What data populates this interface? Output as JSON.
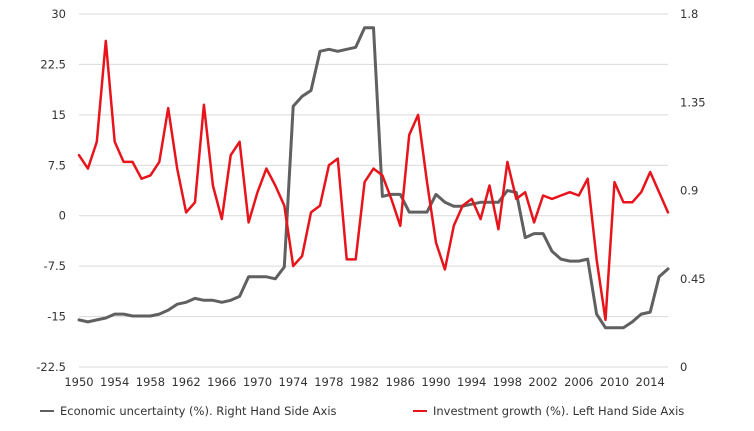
{
  "chart_data": {
    "type": "line",
    "title": "",
    "xlabel": "",
    "ylabel_left": "",
    "ylabel_right": "",
    "x": [
      1950,
      1951,
      1952,
      1953,
      1954,
      1955,
      1956,
      1957,
      1958,
      1959,
      1960,
      1961,
      1962,
      1963,
      1964,
      1965,
      1966,
      1967,
      1968,
      1969,
      1970,
      1971,
      1972,
      1973,
      1974,
      1975,
      1976,
      1977,
      1978,
      1979,
      1980,
      1981,
      1982,
      1983,
      1984,
      1985,
      1986,
      1987,
      1988,
      1989,
      1990,
      1991,
      1992,
      1993,
      1994,
      1995,
      1996,
      1997,
      1998,
      1999,
      2000,
      2001,
      2002,
      2003,
      2004,
      2005,
      2006,
      2007,
      2008,
      2009,
      2010,
      2011,
      2012,
      2013,
      2014,
      2015,
      2016
    ],
    "x_ticks": [
      "1950",
      "1954",
      "1958",
      "1962",
      "1966",
      "1970",
      "1974",
      "1978",
      "1982",
      "1986",
      "1990",
      "1994",
      "1998",
      "2002",
      "2006",
      "2010",
      "2014"
    ],
    "y_left_ticks": [
      "30",
      "22.5",
      "15",
      "7.5",
      "0",
      "-7.5",
      "-15",
      "-22.5"
    ],
    "y_right_ticks": [
      "1.8",
      "1.35",
      "0.9",
      "0.45",
      "0"
    ],
    "ylim_left": [
      -22.5,
      30
    ],
    "ylim_right": [
      0,
      1.8
    ],
    "grid": "horizontal",
    "legend_position": "bottom",
    "series": [
      {
        "name": "Economic uncertainty (%). Right Hand Side Axis",
        "axis": "right",
        "color": "#606060",
        "values": [
          0.24,
          0.23,
          0.24,
          0.25,
          0.27,
          0.27,
          0.26,
          0.26,
          0.26,
          0.27,
          0.29,
          0.32,
          0.33,
          0.35,
          0.34,
          0.34,
          0.33,
          0.34,
          0.36,
          0.46,
          0.46,
          0.46,
          0.45,
          0.51,
          1.33,
          1.38,
          1.41,
          1.61,
          1.62,
          1.61,
          1.62,
          1.63,
          1.73,
          1.73,
          0.87,
          0.88,
          0.88,
          0.79,
          0.79,
          0.79,
          0.88,
          0.84,
          0.82,
          0.82,
          0.83,
          0.84,
          0.84,
          0.84,
          0.9,
          0.89,
          0.66,
          0.68,
          0.68,
          0.59,
          0.55,
          0.54,
          0.54,
          0.55,
          0.27,
          0.2,
          0.2,
          0.2,
          0.23,
          0.27,
          0.28,
          0.46,
          0.5
        ]
      },
      {
        "name": "Investment growth (%). Left Hand Side Axis",
        "axis": "left",
        "color": "#e8141b",
        "values": [
          9,
          7,
          11,
          26,
          11,
          8,
          8,
          5.5,
          6,
          8,
          16,
          7,
          0.5,
          2,
          16.5,
          4.5,
          -0.5,
          9,
          11,
          -1,
          3.5,
          7,
          4.5,
          1.5,
          -7.5,
          -6,
          0.5,
          1.5,
          7.5,
          8.5,
          -6.5,
          -6.5,
          5,
          7,
          6,
          2.5,
          -1.5,
          12,
          15,
          5,
          -4,
          -8,
          -1.5,
          1.5,
          2.5,
          -0.5,
          4.5,
          -2,
          8,
          2.5,
          3.5,
          -1,
          3,
          2.5,
          3,
          3.5,
          3,
          5.5,
          -6.5,
          -15.5,
          5,
          2,
          2,
          3.5,
          6.5,
          3.5,
          0.5
        ]
      }
    ]
  }
}
